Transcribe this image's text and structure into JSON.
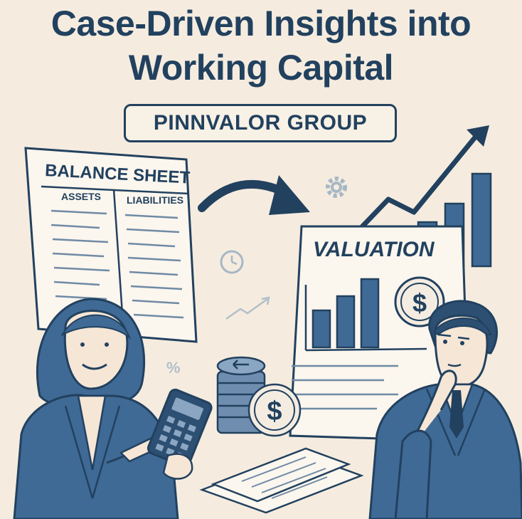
{
  "title": {
    "line1": "Case-Driven Insights into",
    "line2": "Working Capital"
  },
  "badge": "PINNVALOR GROUP",
  "balance_sheet": {
    "title": "BALANCE SHEET",
    "col_assets": "ASSETS",
    "col_liabilities": "LIABILITIES"
  },
  "valuation": {
    "title": "VALUATION"
  },
  "icons": {
    "percent": "%",
    "dollar": "$"
  },
  "colors": {
    "background": "#f5ecdf",
    "navy": "#22415f",
    "blue": "#3f6a95"
  }
}
